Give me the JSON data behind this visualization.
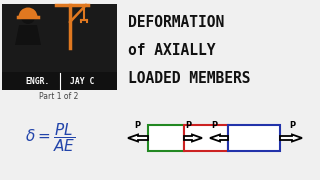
{
  "bg_color": "#f0f0f0",
  "title_lines": [
    "DEFORMATION",
    "of AXIALLY",
    "LOADED MEMBERS"
  ],
  "title_color": "#111111",
  "title_fontsize": 10.5,
  "subtitle": "Part 1 of 2",
  "formula_color": "#2244aa",
  "formula_fontsize": 11,
  "box1_color": "#228822",
  "box2_color": "#cc2222",
  "box3_color": "#2233aa",
  "logo_bg": "#1a1a1a",
  "logo_text_color": "#ffffff",
  "crane_color": "#e07820",
  "hat_color": "#e07820"
}
